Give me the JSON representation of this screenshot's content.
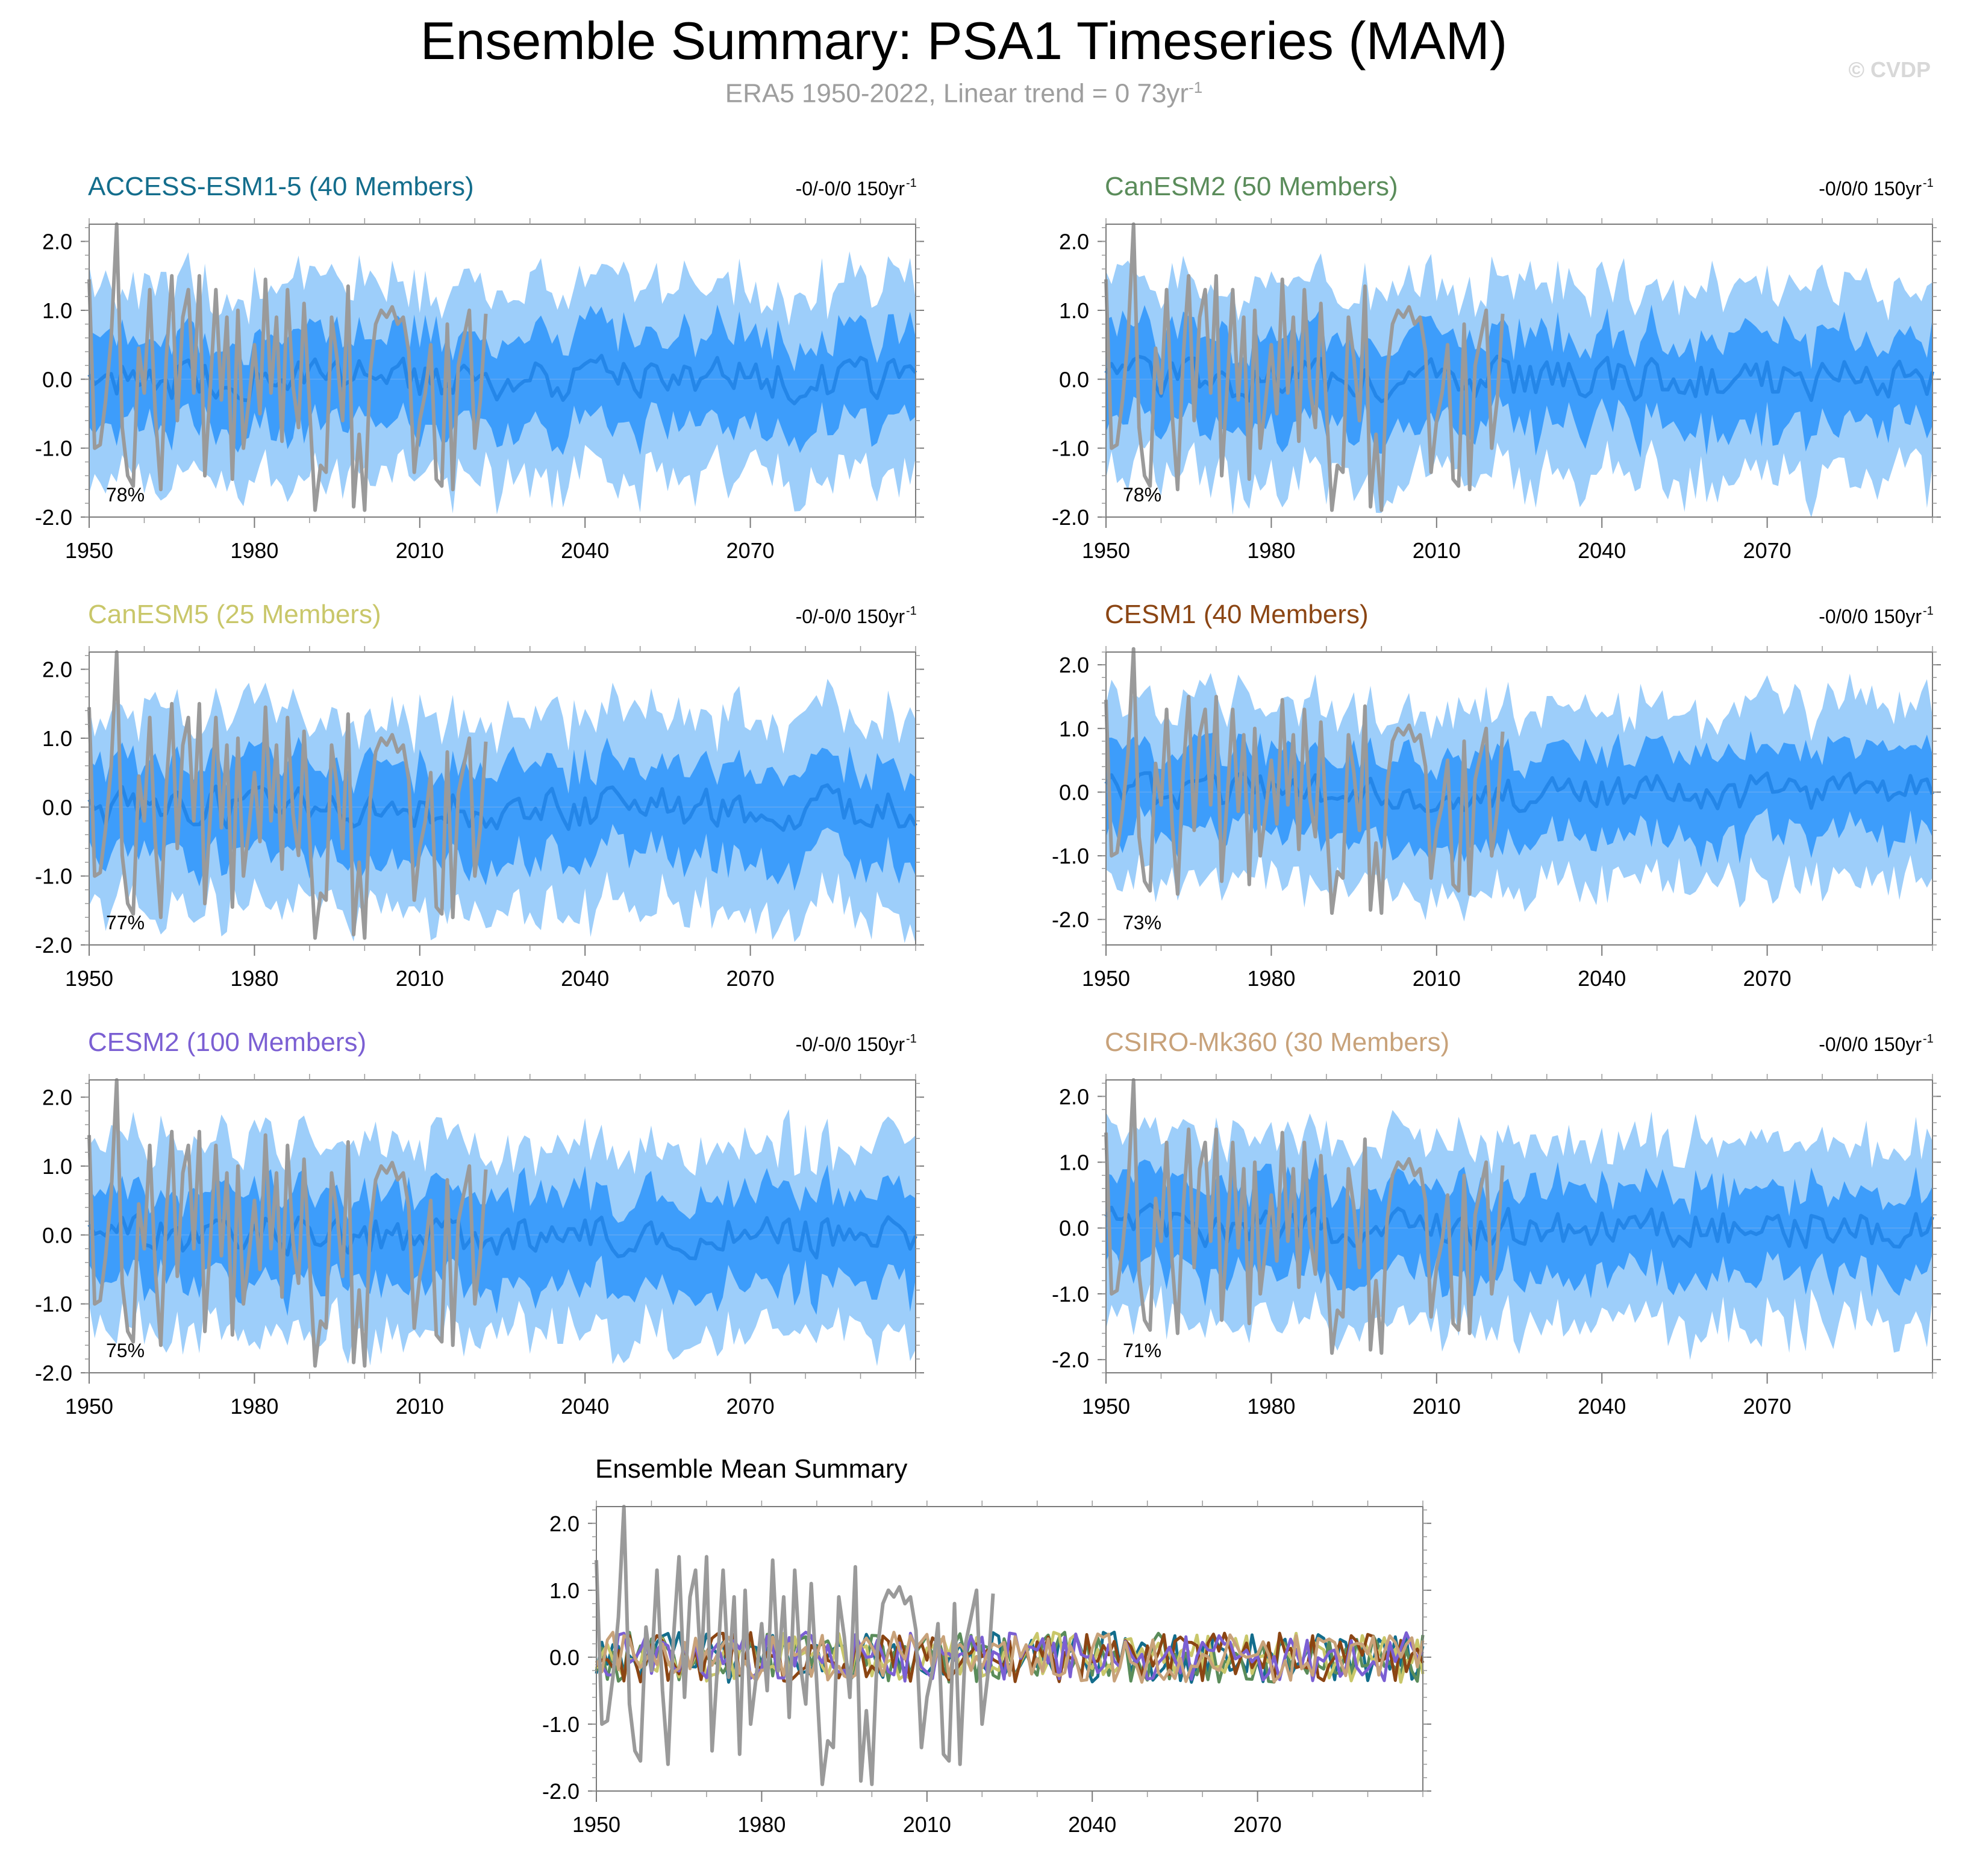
{
  "title": "Ensemble Summary: PSA1 Timeseries (MAM)",
  "subtitle": "ERA5 1950-2022, Linear trend = 0 73yr",
  "subtitle_sup": "-1",
  "copyright": "© CVDP",
  "colors": {
    "outer_band": "#9dcefa",
    "inner_band": "#3d9dfb",
    "mean_line": "#2486e8",
    "observation": "#9a9a9a"
  },
  "chart_data": [
    {
      "type": "line",
      "title": "ACCESS-ESM1-5 (40 Members)",
      "title_color": "#136d8c",
      "trend_label": "-0/-0/0 150yr",
      "trend_sup": "-1",
      "pct_label": "78%",
      "xlim": [
        1950,
        2100
      ],
      "ylim": [
        -2.0,
        2.25
      ],
      "xticks": [
        "1950",
        "1980",
        "2010",
        "2040",
        "2070"
      ],
      "yticks": [
        "2.0",
        "1.0",
        "0.0",
        "-1.0",
        "-2.0"
      ],
      "series": [
        "10th-90th percentile band",
        "25th-75th percentile band",
        "ensemble mean",
        "ERA5"
      ]
    },
    {
      "type": "line",
      "title": "CanESM2 (50 Members)",
      "title_color": "#5a8c5a",
      "trend_label": "-0/0/0 150yr",
      "trend_sup": "-1",
      "pct_label": "78%",
      "xlim": [
        1950,
        2100
      ],
      "ylim": [
        -2.0,
        2.25
      ],
      "xticks": [
        "1950",
        "1980",
        "2010",
        "2040",
        "2070"
      ],
      "yticks": [
        "2.0",
        "1.0",
        "0.0",
        "-1.0",
        "-2.0"
      ],
      "series": [
        "10th-90th percentile band",
        "25th-75th percentile band",
        "ensemble mean",
        "ERA5"
      ]
    },
    {
      "type": "line",
      "title": "CanESM5 (25 Members)",
      "title_color": "#c9c76a",
      "trend_label": "-0/-0/0 150yr",
      "trend_sup": "-1",
      "pct_label": "77%",
      "xlim": [
        1950,
        2100
      ],
      "ylim": [
        -2.0,
        2.25
      ],
      "xticks": [
        "1950",
        "1980",
        "2010",
        "2040",
        "2070"
      ],
      "yticks": [
        "2.0",
        "1.0",
        "0.0",
        "-1.0",
        "-2.0"
      ],
      "series": [
        "10th-90th percentile band",
        "25th-75th percentile band",
        "ensemble mean",
        "ERA5"
      ]
    },
    {
      "type": "line",
      "title": "CESM1 (40 Members)",
      "title_color": "#8b4513",
      "trend_label": "-0/0/0 150yr",
      "trend_sup": "-1",
      "pct_label": "73%",
      "xlim": [
        1950,
        2100
      ],
      "ylim": [
        -2.4,
        2.2
      ],
      "xticks": [
        "1950",
        "1980",
        "2010",
        "2040",
        "2070"
      ],
      "yticks": [
        "2.0",
        "1.0",
        "0.0",
        "-1.0",
        "-2.0"
      ],
      "series": [
        "10th-90th percentile band",
        "25th-75th percentile band",
        "ensemble mean",
        "ERA5"
      ]
    },
    {
      "type": "line",
      "title": "CESM2 (100 Members)",
      "title_color": "#7b5fd3",
      "trend_label": "-0/-0/0 150yr",
      "trend_sup": "-1",
      "pct_label": "75%",
      "xlim": [
        1950,
        2100
      ],
      "ylim": [
        -2.0,
        2.25
      ],
      "xticks": [
        "1950",
        "1980",
        "2010",
        "2040",
        "2070"
      ],
      "yticks": [
        "2.0",
        "1.0",
        "0.0",
        "-1.0",
        "-2.0"
      ],
      "series": [
        "10th-90th percentile band",
        "25th-75th percentile band",
        "ensemble mean",
        "ERA5"
      ]
    },
    {
      "type": "line",
      "title": "CSIRO-Mk360 (30 Members)",
      "title_color": "#c8a27a",
      "trend_label": "-0/0/0 150yr",
      "trend_sup": "-1",
      "pct_label": "71%",
      "xlim": [
        1950,
        2100
      ],
      "ylim": [
        -2.2,
        2.25
      ],
      "xticks": [
        "1950",
        "1980",
        "2010",
        "2040",
        "2070"
      ],
      "yticks": [
        "2.0",
        "1.0",
        "0.0",
        "-1.0",
        "-2.0"
      ],
      "series": [
        "10th-90th percentile band",
        "25th-75th percentile band",
        "ensemble mean",
        "ERA5"
      ]
    },
    {
      "type": "line",
      "title": "Ensemble Mean Summary",
      "title_color": "#000000",
      "trend_label": "",
      "trend_sup": "",
      "pct_label": "",
      "xlim": [
        1950,
        2100
      ],
      "ylim": [
        -2.0,
        2.25
      ],
      "xticks": [
        "1950",
        "1980",
        "2010",
        "2040",
        "2070"
      ],
      "yticks": [
        "2.0",
        "1.0",
        "0.0",
        "-1.0",
        "-2.0"
      ],
      "series": [
        "ERA5",
        "ACCESS-ESM1-5",
        "CanESM2",
        "CanESM5",
        "CESM1",
        "CESM2",
        "CSIRO-Mk360"
      ],
      "series_colors": [
        "#9a9a9a",
        "#136d8c",
        "#5a8c5a",
        "#c9c76a",
        "#8b4513",
        "#7b5fd3",
        "#c8a27a"
      ]
    }
  ],
  "observed": {
    "name": "ERA5",
    "years": [
      1950,
      1951,
      1952,
      1953,
      1954,
      1955,
      1956,
      1957,
      1958,
      1959,
      1960,
      1961,
      1962,
      1963,
      1964,
      1965,
      1966,
      1967,
      1968,
      1969,
      1970,
      1971,
      1972,
      1973,
      1974,
      1975,
      1976,
      1977,
      1978,
      1979,
      1980,
      1981,
      1982,
      1983,
      1984,
      1985,
      1986,
      1987,
      1988,
      1989,
      1990,
      1991,
      1992,
      1993,
      1994,
      1995,
      1996,
      1997,
      1998,
      1999,
      2000,
      2001,
      2002,
      2003,
      2004,
      2005,
      2006,
      2007,
      2008,
      2009,
      2010,
      2011,
      2012,
      2013,
      2014,
      2015,
      2016,
      2017,
      2018,
      2019,
      2020,
      2021,
      2022
    ],
    "values": [
      1.45,
      -1.0,
      -0.95,
      -0.3,
      0.6,
      2.25,
      -0.7,
      -1.4,
      -1.55,
      0.45,
      -0.2,
      1.3,
      -0.5,
      -1.6,
      0.3,
      1.5,
      -0.6,
      0.9,
      1.3,
      -0.2,
      1.5,
      -1.4,
      -0.1,
      1.3,
      -0.3,
      0.9,
      -1.45,
      1.0,
      -1.0,
      -0.3,
      0.5,
      -0.5,
      1.45,
      -0.2,
      0.9,
      -0.9,
      1.3,
      -0.1,
      -0.7,
      1.1,
      -0.4,
      -1.9,
      -1.25,
      -1.35,
      0.9,
      0.3,
      -0.6,
      1.35,
      -1.85,
      -0.8,
      -1.9,
      0.1,
      0.8,
      1.0,
      0.9,
      1.05,
      0.8,
      0.9,
      0.4,
      -1.35,
      -0.6,
      -0.2,
      0.5,
      -1.45,
      -1.55,
      0.8,
      -1.6,
      0.2,
      0.6,
      1.0,
      -1.0,
      -0.3,
      0.95
    ]
  }
}
